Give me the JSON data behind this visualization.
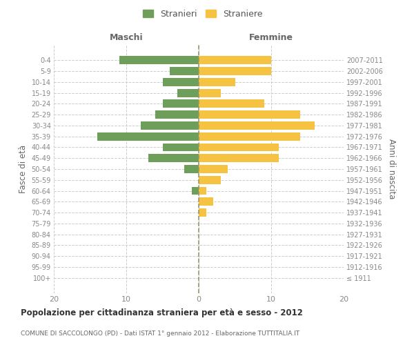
{
  "age_groups": [
    "100+",
    "95-99",
    "90-94",
    "85-89",
    "80-84",
    "75-79",
    "70-74",
    "65-69",
    "60-64",
    "55-59",
    "50-54",
    "45-49",
    "40-44",
    "35-39",
    "30-34",
    "25-29",
    "20-24",
    "15-19",
    "10-14",
    "5-9",
    "0-4"
  ],
  "birth_years": [
    "≤ 1911",
    "1912-1916",
    "1917-1921",
    "1922-1926",
    "1927-1931",
    "1932-1936",
    "1937-1941",
    "1942-1946",
    "1947-1951",
    "1952-1956",
    "1957-1961",
    "1962-1966",
    "1967-1971",
    "1972-1976",
    "1977-1981",
    "1982-1986",
    "1987-1991",
    "1992-1996",
    "1997-2001",
    "2002-2006",
    "2007-2011"
  ],
  "maschi": [
    0,
    0,
    0,
    0,
    0,
    0,
    0,
    0,
    1,
    0,
    2,
    7,
    5,
    14,
    8,
    6,
    5,
    3,
    5,
    4,
    11
  ],
  "femmine": [
    0,
    0,
    0,
    0,
    0,
    0,
    1,
    2,
    1,
    3,
    4,
    11,
    11,
    14,
    16,
    14,
    9,
    3,
    5,
    10,
    10
  ],
  "maschi_color": "#6d9e5a",
  "femmine_color": "#f5c242",
  "legend_maschi": "Stranieri",
  "legend_femmine": "Straniere",
  "title_maschi": "Maschi",
  "title_femmine": "Femmine",
  "ylabel_left": "Fasce di età",
  "ylabel_right": "Anni di nascita",
  "xlim": 20,
  "title_main": "Popolazione per cittadinanza straniera per età e sesso - 2012",
  "subtitle": "COMUNE DI SACCOLONGO (PD) - Dati ISTAT 1° gennaio 2012 - Elaborazione TUTTITALIA.IT",
  "background_color": "#ffffff",
  "grid_color": "#cccccc",
  "bar_height": 0.75
}
